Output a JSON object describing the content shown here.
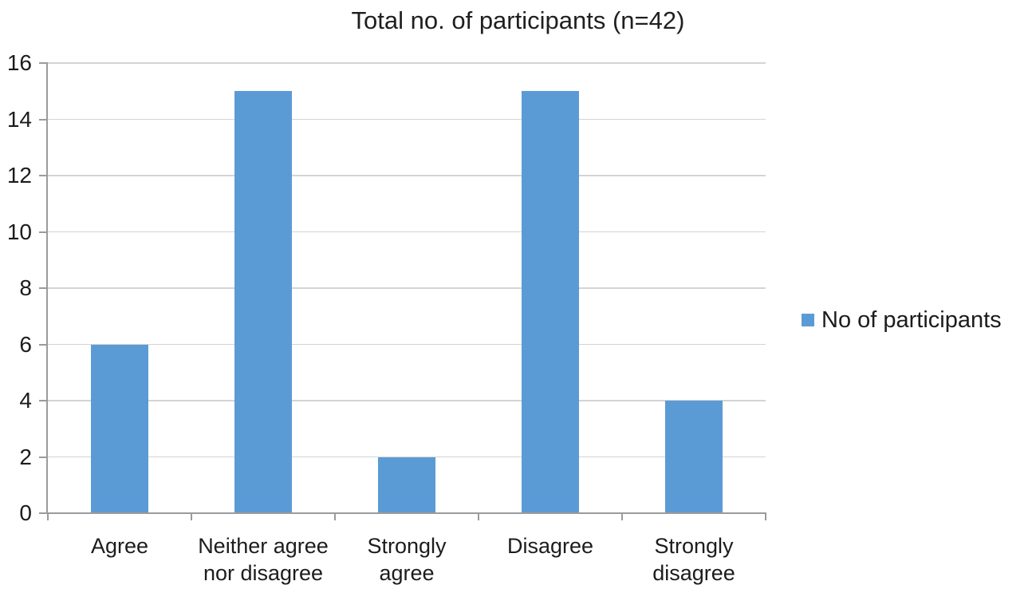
{
  "title": "Total no. of participants (n=42)",
  "legend": {
    "label": "No of participants"
  },
  "colors": {
    "bar": "#5B9BD5",
    "gridline": "#D4D4D4",
    "axis": "#9B9B9B",
    "text": "#1C1C1C"
  },
  "chart_data": {
    "type": "bar",
    "title": "Total no. of participants (n=42)",
    "categories": [
      "Agree",
      "Neither agree\nnor disagree",
      "Strongly\nagree",
      "Disagree",
      "Strongly\ndisagree"
    ],
    "series": [
      {
        "name": "No of participants",
        "values": [
          6,
          15,
          2,
          15,
          4
        ]
      }
    ],
    "xlabel": "",
    "ylabel": "",
    "ylim": [
      0,
      16
    ],
    "ytick_step": 2,
    "yticks": [
      0,
      2,
      4,
      6,
      8,
      10,
      12,
      14,
      16
    ],
    "grid": true,
    "legend_position": "right",
    "bar_color": "#5B9BD5"
  }
}
